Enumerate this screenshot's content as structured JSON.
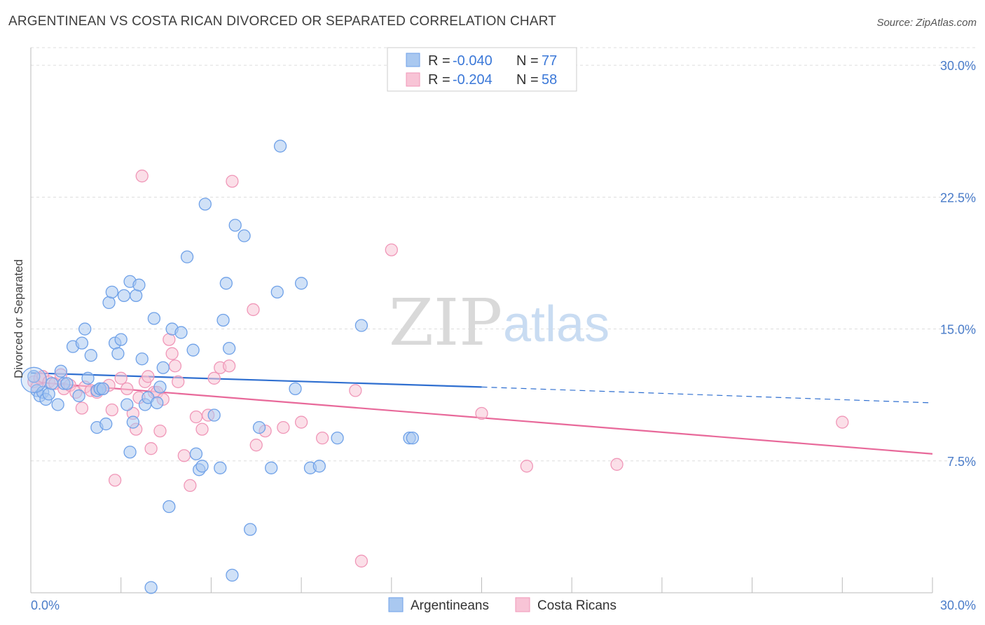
{
  "header": {
    "title": "ARGENTINEAN VS COSTA RICAN DIVORCED OR SEPARATED CORRELATION CHART",
    "source": "Source: ZipAtlas.com"
  },
  "watermark": {
    "zip": "ZIP",
    "atlas": "atlas"
  },
  "legend": {
    "rows": [
      {
        "r_label": "R = ",
        "r_value": "-0.040",
        "n_label": "N = ",
        "n_value": "77",
        "color": "#6fa1e8"
      },
      {
        "r_label": "R = ",
        "r_value": "-0.204",
        "n_label": "N = ",
        "n_value": "58",
        "color": "#f097b8"
      }
    ]
  },
  "bottom_legend": {
    "series_a": "Argentineans",
    "series_b": "Costa Ricans"
  },
  "colors": {
    "blue_fill": "#a9c8f0",
    "blue_stroke": "#6fa1e8",
    "blue_line": "#2f6fd0",
    "pink_fill": "#f8c4d6",
    "pink_stroke": "#f097b8",
    "pink_line": "#e8699a",
    "grid": "#dddddd",
    "tick_text": "#4a7cc9"
  },
  "chart_data": {
    "type": "scatter",
    "title": "ARGENTINEAN VS COSTA RICAN DIVORCED OR SEPARATED CORRELATION CHART",
    "xlabel": "",
    "ylabel": "Divorced or Separated",
    "xlim": [
      0,
      30
    ],
    "ylim": [
      0,
      31
    ],
    "x_tick_labels": [
      "0.0%",
      "30.0%"
    ],
    "y_ticks": [
      7.5,
      15.0,
      22.5,
      30.0
    ],
    "y_tick_labels": [
      "7.5%",
      "15.0%",
      "22.5%",
      "30.0%"
    ],
    "grid": true,
    "legend_position": "top-center",
    "series": [
      {
        "name": "Argentineans",
        "R": -0.04,
        "N": 77,
        "trend": {
          "x0": 0.0,
          "y0": 12.5,
          "x1": 15.0,
          "y1": 11.7,
          "dashed_to_x": 30.0,
          "dashed_to_y": 10.8
        },
        "points": [
          [
            0.1,
            12.3
          ],
          [
            0.2,
            11.5
          ],
          [
            0.3,
            11.2
          ],
          [
            0.4,
            11.4
          ],
          [
            0.5,
            11.0
          ],
          [
            0.6,
            11.3
          ],
          [
            0.7,
            11.9
          ],
          [
            0.9,
            10.7
          ],
          [
            1.0,
            12.6
          ],
          [
            1.1,
            11.9
          ],
          [
            1.2,
            11.9
          ],
          [
            1.4,
            14.0
          ],
          [
            1.6,
            11.2
          ],
          [
            1.7,
            14.2
          ],
          [
            1.8,
            15.0
          ],
          [
            1.9,
            12.2
          ],
          [
            2.0,
            13.5
          ],
          [
            2.2,
            11.5
          ],
          [
            2.3,
            11.6
          ],
          [
            2.2,
            9.4
          ],
          [
            2.3,
            11.6
          ],
          [
            2.4,
            11.6
          ],
          [
            2.5,
            9.6
          ],
          [
            2.6,
            16.5
          ],
          [
            2.7,
            17.1
          ],
          [
            2.8,
            14.2
          ],
          [
            2.9,
            13.6
          ],
          [
            3.0,
            14.4
          ],
          [
            3.1,
            16.9
          ],
          [
            3.2,
            10.7
          ],
          [
            3.3,
            17.7
          ],
          [
            3.3,
            8.0
          ],
          [
            3.4,
            9.7
          ],
          [
            3.5,
            16.9
          ],
          [
            3.6,
            17.5
          ],
          [
            3.7,
            13.3
          ],
          [
            3.8,
            10.7
          ],
          [
            3.9,
            11.1
          ],
          [
            4.0,
            0.3
          ],
          [
            4.1,
            15.6
          ],
          [
            4.2,
            10.8
          ],
          [
            4.3,
            11.7
          ],
          [
            4.4,
            12.8
          ],
          [
            4.6,
            4.9
          ],
          [
            4.7,
            15.0
          ],
          [
            5.0,
            14.8
          ],
          [
            5.2,
            19.1
          ],
          [
            5.4,
            13.8
          ],
          [
            5.5,
            7.9
          ],
          [
            5.6,
            7.0
          ],
          [
            5.7,
            7.2
          ],
          [
            5.8,
            22.1
          ],
          [
            6.1,
            10.1
          ],
          [
            6.3,
            7.1
          ],
          [
            6.4,
            15.5
          ],
          [
            6.5,
            17.6
          ],
          [
            6.6,
            13.9
          ],
          [
            6.8,
            20.9
          ],
          [
            7.1,
            20.3
          ],
          [
            6.7,
            1.0
          ],
          [
            7.3,
            3.6
          ],
          [
            7.6,
            9.4
          ],
          [
            8.2,
            17.1
          ],
          [
            8.3,
            25.4
          ],
          [
            8.0,
            7.1
          ],
          [
            8.8,
            11.6
          ],
          [
            9.0,
            17.6
          ],
          [
            9.3,
            7.1
          ],
          [
            9.6,
            7.2
          ],
          [
            10.2,
            8.8
          ],
          [
            11.0,
            15.2
          ],
          [
            12.6,
            8.8
          ],
          [
            12.7,
            8.8
          ]
        ]
      },
      {
        "name": "Costa Ricans",
        "R": -0.204,
        "N": 58,
        "trend": {
          "x0": 0.0,
          "y0": 12.0,
          "x1": 30.0,
          "y1": 7.9
        },
        "points": [
          [
            0.1,
            12.0
          ],
          [
            0.2,
            11.7
          ],
          [
            0.3,
            12.2
          ],
          [
            0.4,
            12.3
          ],
          [
            0.6,
            12.0
          ],
          [
            0.8,
            11.9
          ],
          [
            1.0,
            12.4
          ],
          [
            1.1,
            11.6
          ],
          [
            1.3,
            11.8
          ],
          [
            1.5,
            11.4
          ],
          [
            1.7,
            10.5
          ],
          [
            1.8,
            11.7
          ],
          [
            2.0,
            11.5
          ],
          [
            2.2,
            11.4
          ],
          [
            2.4,
            11.6
          ],
          [
            2.6,
            11.8
          ],
          [
            2.7,
            10.4
          ],
          [
            2.8,
            6.4
          ],
          [
            3.0,
            12.2
          ],
          [
            3.2,
            11.6
          ],
          [
            3.4,
            10.2
          ],
          [
            3.5,
            9.3
          ],
          [
            3.6,
            11.1
          ],
          [
            3.7,
            23.7
          ],
          [
            3.8,
            12.0
          ],
          [
            3.9,
            12.3
          ],
          [
            4.0,
            8.2
          ],
          [
            4.1,
            11.4
          ],
          [
            4.2,
            11.4
          ],
          [
            4.3,
            9.2
          ],
          [
            4.4,
            11.0
          ],
          [
            4.6,
            14.4
          ],
          [
            4.7,
            13.6
          ],
          [
            4.8,
            12.9
          ],
          [
            4.9,
            12.0
          ],
          [
            5.1,
            7.8
          ],
          [
            5.3,
            6.1
          ],
          [
            5.5,
            10.0
          ],
          [
            5.7,
            9.3
          ],
          [
            5.9,
            10.1
          ],
          [
            6.1,
            12.2
          ],
          [
            6.3,
            12.8
          ],
          [
            6.6,
            12.9
          ],
          [
            6.7,
            23.4
          ],
          [
            7.4,
            16.1
          ],
          [
            7.5,
            8.4
          ],
          [
            7.8,
            9.2
          ],
          [
            8.4,
            9.4
          ],
          [
            9.0,
            9.7
          ],
          [
            9.7,
            8.8
          ],
          [
            10.8,
            11.5
          ],
          [
            11.0,
            1.8
          ],
          [
            12.0,
            19.5
          ],
          [
            15.0,
            10.2
          ],
          [
            16.5,
            7.2
          ],
          [
            19.5,
            7.3
          ],
          [
            27.0,
            9.7
          ]
        ]
      }
    ]
  }
}
